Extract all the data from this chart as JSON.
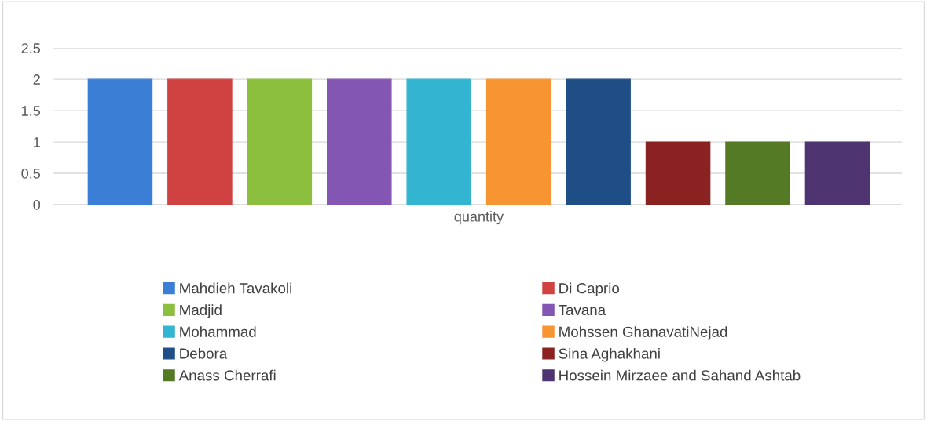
{
  "chart_data": {
    "type": "bar",
    "categories": [
      "quantity"
    ],
    "series": [
      {
        "name": "Mahdieh Tavakoli",
        "color": "#3a7fd5",
        "values": [
          2
        ]
      },
      {
        "name": "Di Caprio",
        "color": "#d04242",
        "values": [
          2
        ]
      },
      {
        "name": "Madjid",
        "color": "#8dbf3f",
        "values": [
          2
        ]
      },
      {
        "name": "Tavana",
        "color": "#8456b3",
        "values": [
          2
        ]
      },
      {
        "name": "Mohammad",
        "color": "#33b5d1",
        "values": [
          2
        ]
      },
      {
        "name": "Mohssen GhanavatiNejad",
        "color": "#f79533",
        "values": [
          2
        ]
      },
      {
        "name": "Debora",
        "color": "#1f4e87",
        "values": [
          2
        ]
      },
      {
        "name": "Sina Aghakhani",
        "color": "#8a2222",
        "values": [
          1
        ]
      },
      {
        "name": "Anass Cherrafi",
        "color": "#557a25",
        "values": [
          1
        ]
      },
      {
        "name": "Hossein Mirzaee and Sahand Ashtab",
        "color": "#4e3470",
        "values": [
          1
        ]
      }
    ],
    "ylim": [
      0,
      2.5
    ],
    "yticks": [
      0,
      0.5,
      1,
      1.5,
      2,
      2.5
    ],
    "grid": "y",
    "legend": "bottom"
  }
}
